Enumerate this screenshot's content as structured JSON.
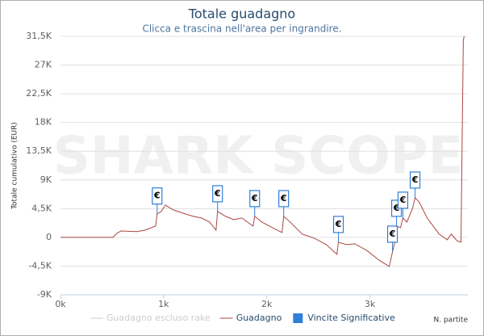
{
  "chart_data": {
    "type": "line",
    "title": "Totale guadagno",
    "subtitle": "Clicca e trascina nell'area per ingrandire.",
    "watermark": "SHARK SCOPE",
    "x_label": "N. partite",
    "y_label": "Totale cumulativo (EUR)",
    "xlim": [
      0,
      3950
    ],
    "xticks": [
      {
        "value": 0,
        "label": "0k"
      },
      {
        "value": 1000,
        "label": "1k"
      },
      {
        "value": 2000,
        "label": "2k"
      },
      {
        "value": 3000,
        "label": "3k"
      }
    ],
    "ylim": [
      -9000,
      31500
    ],
    "yticks": [
      {
        "value": -9000,
        "label": "-9K"
      },
      {
        "value": -4500,
        "label": "-4,5K"
      },
      0,
      {
        "value": 4500,
        "label": "4,5K"
      },
      {
        "value": 9000,
        "label": "9K"
      },
      {
        "value": 13500,
        "label": "13,5K"
      },
      {
        "value": 18000,
        "label": "18K"
      },
      {
        "value": 22500,
        "label": "22,5K"
      },
      {
        "value": 27000,
        "label": "27K"
      },
      {
        "value": 31500,
        "label": "31,5K"
      }
    ],
    "grid": true,
    "inactive_legend_items": [
      {
        "name": "Guadagno escluso rake",
        "color": "#cccccc"
      }
    ],
    "series": [
      {
        "name": "Guadagno",
        "color": "#aa4643",
        "x": [
          0,
          508,
          547,
          586,
          742,
          820,
          922,
          937,
          977,
          1016,
          1094,
          1211,
          1289,
          1367,
          1445,
          1508,
          1523,
          1602,
          1680,
          1758,
          1867,
          1883,
          1953,
          2070,
          2148,
          2164,
          2227,
          2344,
          2461,
          2578,
          2680,
          2695,
          2773,
          2852,
          2969,
          3086,
          3188,
          3219,
          3242,
          3258,
          3297,
          3320,
          3359,
          3414,
          3438,
          3477,
          3555,
          3672,
          3750,
          3789,
          3844,
          3883,
          3906,
          3914
        ],
        "values": [
          0,
          0,
          630,
          1000,
          900,
          1140,
          1770,
          3700,
          4050,
          5060,
          4300,
          3670,
          3290,
          3040,
          2400,
          1140,
          4050,
          3290,
          2780,
          3040,
          1770,
          3290,
          2400,
          1390,
          760,
          3290,
          2400,
          510,
          -130,
          -1140,
          -2660,
          -760,
          -1140,
          -1010,
          -2030,
          -3540,
          -4560,
          -2280,
          -760,
          1770,
          1520,
          3040,
          2400,
          4560,
          6200,
          5570,
          3040,
          510,
          -380,
          510,
          -510,
          -760,
          30900,
          31500
        ]
      },
      {
        "name": "Vincite Significative",
        "color": "#2f7ed8",
        "marker_symbol": "€",
        "x": [
          937,
          1523,
          1883,
          2164,
          2695,
          3219,
          3258,
          3320,
          3438
        ],
        "values": [
          3700,
          4050,
          3290,
          3290,
          -760,
          -2280,
          1770,
          3040,
          6200
        ]
      }
    ]
  }
}
